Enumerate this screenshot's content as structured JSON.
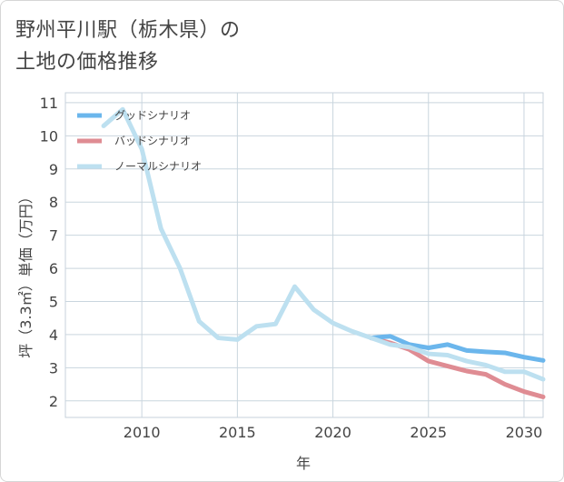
{
  "page": {
    "title_line1": "野州平川駅（栃木県）の",
    "title_line2": "土地の価格推移"
  },
  "chart_data": {
    "type": "line",
    "title": "野州平川駅（栃木県）の土地の価格推移",
    "xlabel": "年",
    "ylabel": "坪（3.3㎡）単価（万円）",
    "xlim": [
      2006,
      2031
    ],
    "ylim": [
      1.5,
      11.3
    ],
    "x_ticks": [
      2010,
      2015,
      2020,
      2025,
      2030
    ],
    "y_ticks": [
      2,
      3,
      4,
      5,
      6,
      7,
      8,
      9,
      10,
      11
    ],
    "grid": true,
    "legend_position": "top-left",
    "series": [
      {
        "name": "グッドシナリオ",
        "color": "#6bb6ec",
        "x": [
          2022,
          2023,
          2024,
          2025,
          2026,
          2027,
          2028,
          2029,
          2030,
          2031
        ],
        "values": [
          3.9,
          3.95,
          3.7,
          3.6,
          3.7,
          3.52,
          3.48,
          3.45,
          3.32,
          3.22
        ]
      },
      {
        "name": "バッドシナリオ",
        "color": "#df8c93",
        "x": [
          2022,
          2023,
          2024,
          2025,
          2026,
          2027,
          2028,
          2029,
          2030,
          2031
        ],
        "values": [
          3.9,
          3.75,
          3.55,
          3.2,
          3.05,
          2.9,
          2.8,
          2.5,
          2.28,
          2.12
        ]
      },
      {
        "name": "ノーマルシナリオ",
        "color": "#bde0f0",
        "x": [
          2008,
          2009,
          2010,
          2011,
          2012,
          2013,
          2014,
          2015,
          2016,
          2017,
          2018,
          2019,
          2020,
          2021,
          2022,
          2023,
          2024,
          2025,
          2026,
          2027,
          2028,
          2029,
          2030,
          2031
        ],
        "values": [
          10.3,
          10.8,
          9.6,
          7.2,
          6.0,
          4.4,
          3.9,
          3.85,
          4.25,
          4.32,
          5.45,
          4.75,
          4.35,
          4.1,
          3.9,
          3.7,
          3.62,
          3.42,
          3.38,
          3.2,
          3.08,
          2.88,
          2.88,
          2.65
        ]
      }
    ]
  }
}
